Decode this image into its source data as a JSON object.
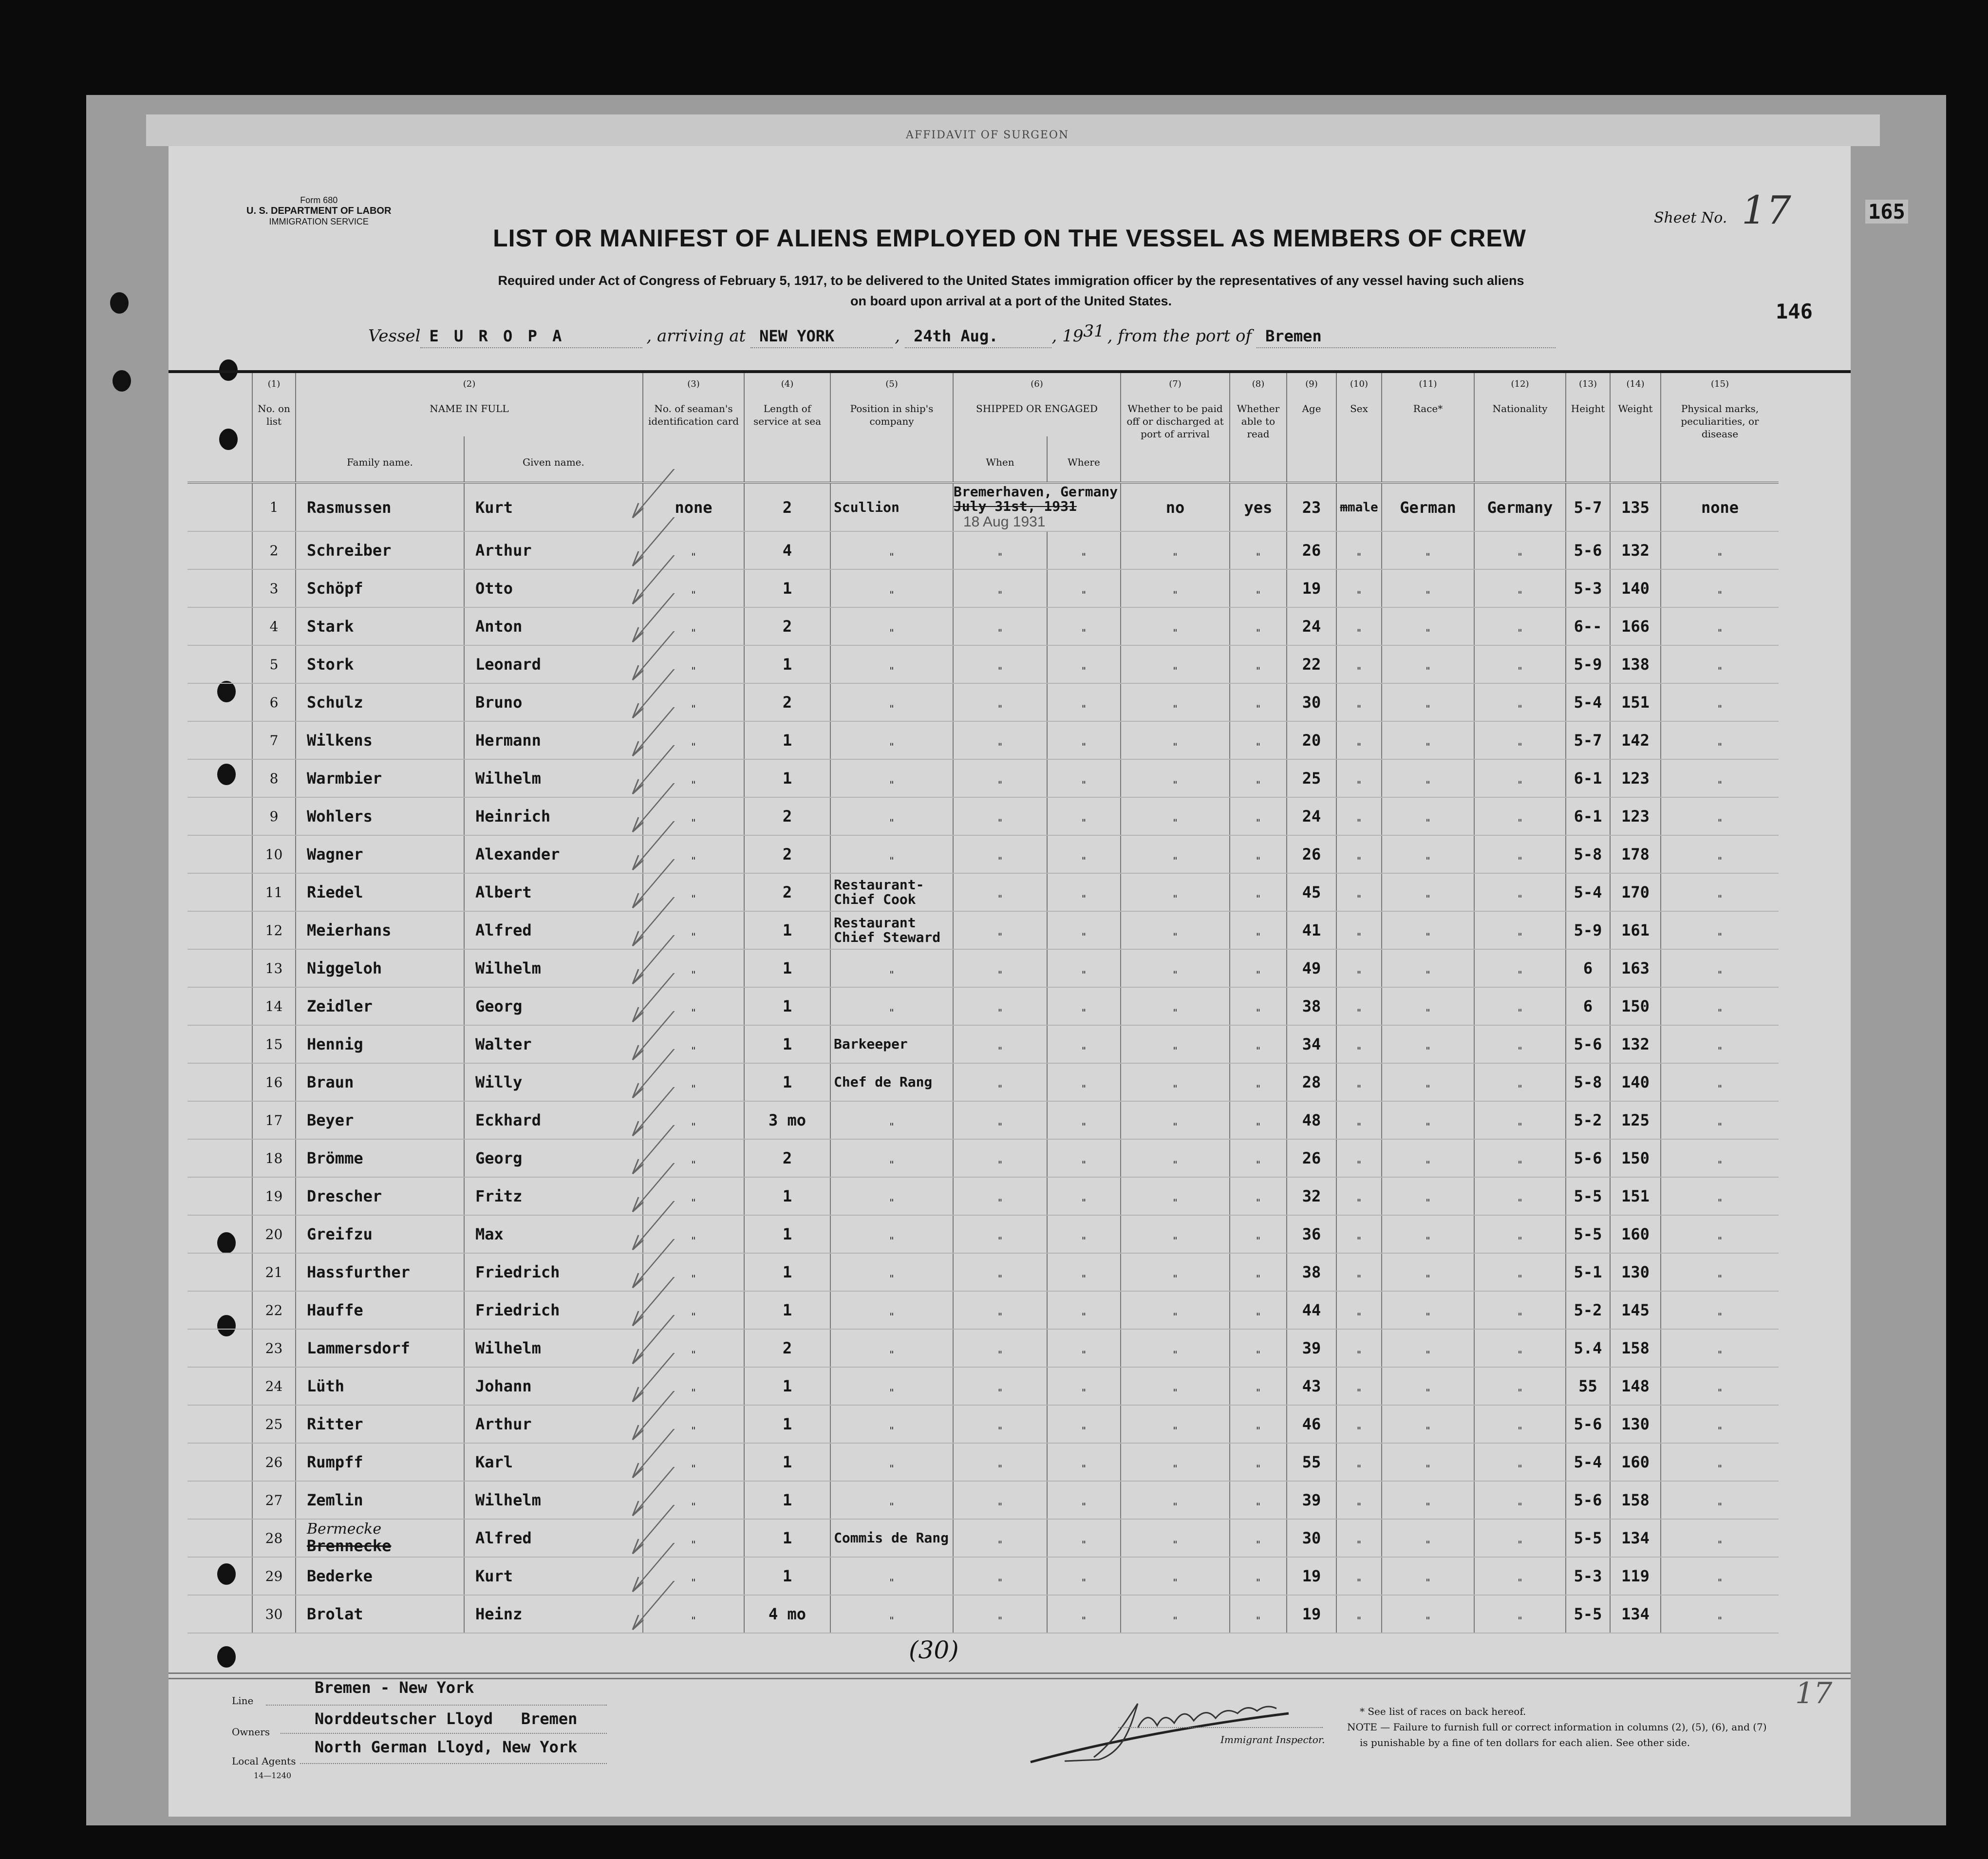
{
  "back_sheet_heading": "AFFIDAVIT OF SURGEON",
  "form": {
    "number": "Form 680",
    "department": "U. S. DEPARTMENT OF LABOR",
    "service": "IMMIGRATION SERVICE",
    "title": "LIST OR MANIFEST OF ALIENS EMPLOYED ON THE VESSEL AS MEMBERS OF CREW",
    "subtitle_1": "Required under Act of Congress of February 5, 1917, to be delivered to the United States immigration officer by the representatives of any vessel having such aliens",
    "subtitle_2": "on board upon arrival at a port of the United States.",
    "sheet_label": "Sheet No.",
    "sheet_no": "17",
    "stamp_top": "165",
    "stamp_mid": "146"
  },
  "voyage": {
    "vessel_label": "Vessel",
    "vessel": "E U R O P A",
    "arriving_label": ", arriving at",
    "port": "NEW YORK",
    "date": "24th Aug.",
    "year_prefix": ", 19",
    "year_suffix": "31",
    "from_label": ", from the port of",
    "from_port": "Bremen"
  },
  "columns": {
    "c1": {
      "num": "(1)",
      "label": "No. on list"
    },
    "c2": {
      "num": "(2)",
      "label": "NAME IN FULL",
      "family": "Family name.",
      "given": "Given name."
    },
    "c3": {
      "num": "(3)",
      "label": "No. of seaman's identification card"
    },
    "c4": {
      "num": "(4)",
      "label": "Length of service at sea"
    },
    "c5": {
      "num": "(5)",
      "label": "Position in ship's company"
    },
    "c6": {
      "num": "(6)",
      "label": "SHIPPED OR ENGAGED",
      "when": "When",
      "where": "Where"
    },
    "c7": {
      "num": "(7)",
      "label": "Whether to be paid off or discharged at port of arrival"
    },
    "c8": {
      "num": "(8)",
      "label": "Whether able to read"
    },
    "c9": {
      "num": "(9)",
      "label": "Age"
    },
    "c10": {
      "num": "(10)",
      "label": "Sex"
    },
    "c11": {
      "num": "(11)",
      "label": "Race*"
    },
    "c12": {
      "num": "(12)",
      "label": "Nationality"
    },
    "c13": {
      "num": "(13)",
      "label": "Height"
    },
    "c14": {
      "num": "(14)",
      "label": "Weight"
    },
    "c15": {
      "num": "(15)",
      "label": "Physical marks, peculiarities, or disease"
    }
  },
  "ditto": "\"",
  "first_row": {
    "shipped_place": "Bremerhaven, Germany",
    "shipped_date_struck": "July 31st, 1931",
    "shipped_stamp": "18 Aug 1931",
    "card": "none",
    "paid_off": "no",
    "able_to_read": "yes",
    "sex_struck": "m",
    "sex": "male",
    "race": "German",
    "nationality": "Germany",
    "marks": "none"
  },
  "crew": [
    {
      "no": "1",
      "family": "Rasmussen",
      "given": "Kurt",
      "length": "2",
      "position": "Scullion",
      "age": "23",
      "height": "5-7",
      "weight": "135"
    },
    {
      "no": "2",
      "family": "Schreiber",
      "given": "Arthur",
      "length": "4",
      "position": "\"",
      "age": "26",
      "height": "5-6",
      "weight": "132"
    },
    {
      "no": "3",
      "family": "Schöpf",
      "given": "Otto",
      "length": "1",
      "position": "\"",
      "age": "19",
      "height": "5-3",
      "weight": "140"
    },
    {
      "no": "4",
      "family": "Stark",
      "given": "Anton",
      "length": "2",
      "position": "\"",
      "age": "24",
      "height": "6--",
      "weight": "166"
    },
    {
      "no": "5",
      "family": "Stork",
      "given": "Leonard",
      "length": "1",
      "position": "\"",
      "age": "22",
      "height": "5-9",
      "weight": "138"
    },
    {
      "no": "6",
      "family": "Schulz",
      "given": "Bruno",
      "length": "2",
      "position": "\"",
      "age": "30",
      "height": "5-4",
      "weight": "151"
    },
    {
      "no": "7",
      "family": "Wilkens",
      "given": "Hermann",
      "length": "1",
      "position": "\"",
      "age": "20",
      "height": "5-7",
      "weight": "142"
    },
    {
      "no": "8",
      "family": "Warmbier",
      "given": "Wilhelm",
      "length": "1",
      "position": "\"",
      "age": "25",
      "height": "6-1",
      "weight": "123"
    },
    {
      "no": "9",
      "family": "Wohlers",
      "given": "Heinrich",
      "length": "2",
      "position": "\"",
      "age": "24",
      "height": "6-1",
      "weight": "123"
    },
    {
      "no": "10",
      "family": "Wagner",
      "given": "Alexander",
      "length": "2",
      "position": "\"",
      "age": "26",
      "height": "5-8",
      "weight": "178"
    },
    {
      "no": "11",
      "family": "Riedel",
      "given": "Albert",
      "length": "2",
      "position": "Restaurant-Chief Cook",
      "age": "45",
      "height": "5-4",
      "weight": "170"
    },
    {
      "no": "12",
      "family": "Meierhans",
      "given": "Alfred",
      "length": "1",
      "position": "Restaurant Chief Steward",
      "age": "41",
      "height": "5-9",
      "weight": "161"
    },
    {
      "no": "13",
      "family": "Niggeloh",
      "given": "Wilhelm",
      "length": "1",
      "position": "\"",
      "age": "49",
      "height": "6",
      "weight": "163"
    },
    {
      "no": "14",
      "family": "Zeidler",
      "given": "Georg",
      "length": "1",
      "position": "\"",
      "age": "38",
      "height": "6",
      "weight": "150"
    },
    {
      "no": "15",
      "family": "Hennig",
      "given": "Walter",
      "length": "1",
      "position": "Barkeeper",
      "age": "34",
      "height": "5-6",
      "weight": "132"
    },
    {
      "no": "16",
      "family": "Braun",
      "given": "Willy",
      "length": "1",
      "position": "Chef de Rang",
      "age": "28",
      "height": "5-8",
      "weight": "140"
    },
    {
      "no": "17",
      "family": "Beyer",
      "given": "Eckhard",
      "length": "3 mo",
      "position": "\"",
      "age": "48",
      "height": "5-2",
      "weight": "125"
    },
    {
      "no": "18",
      "family": "Brömme",
      "given": "Georg",
      "length": "2",
      "position": "\"",
      "age": "26",
      "height": "5-6",
      "weight": "150"
    },
    {
      "no": "19",
      "family": "Drescher",
      "given": "Fritz",
      "length": "1",
      "position": "\"",
      "age": "32",
      "height": "5-5",
      "weight": "151"
    },
    {
      "no": "20",
      "family": "Greifzu",
      "given": "Max",
      "length": "1",
      "position": "\"",
      "age": "36",
      "height": "5-5",
      "weight": "160"
    },
    {
      "no": "21",
      "family": "Hassfurther",
      "given": "Friedrich",
      "length": "1",
      "position": "\"",
      "age": "38",
      "height": "5-1",
      "weight": "130"
    },
    {
      "no": "22",
      "family": "Hauffe",
      "given": "Friedrich",
      "length": "1",
      "position": "\"",
      "age": "44",
      "height": "5-2",
      "weight": "145"
    },
    {
      "no": "23",
      "family": "Lammersdorf",
      "given": "Wilhelm",
      "length": "2",
      "position": "\"",
      "age": "39",
      "height": "5.4",
      "weight": "158"
    },
    {
      "no": "24",
      "family": "Lüth",
      "given": "Johann",
      "length": "1",
      "position": "\"",
      "age": "43",
      "height": "55",
      "weight": "148"
    },
    {
      "no": "25",
      "family": "Ritter",
      "given": "Arthur",
      "length": "1",
      "position": "\"",
      "age": "46",
      "height": "5-6",
      "weight": "130"
    },
    {
      "no": "26",
      "family": "Rumpff",
      "given": "Karl",
      "length": "1",
      "position": "\"",
      "age": "55",
      "height": "5-4",
      "weight": "160"
    },
    {
      "no": "27",
      "family": "Zemlin",
      "given": "Wilhelm",
      "length": "1",
      "position": "\"",
      "age": "39",
      "height": "5-6",
      "weight": "158"
    },
    {
      "no": "28",
      "family": "Brennecke",
      "family_correction": "Bermecke",
      "given": "Alfred",
      "length": "1",
      "position": "Commis de Rang",
      "age": "30",
      "height": "5-5",
      "weight": "134"
    },
    {
      "no": "29",
      "family": "Bederke",
      "given": "Kurt",
      "length": "1",
      "position": "\"",
      "age": "19",
      "height": "5-3",
      "weight": "119"
    },
    {
      "no": "30",
      "family": "Brolat",
      "given": "Heinz",
      "length": "4 mo",
      "position": "\"",
      "age": "19",
      "height": "5-5",
      "weight": "134"
    }
  ],
  "total_count": "(30)",
  "footer": {
    "line_label": "Line",
    "line": "Bremen - New York",
    "owners_label": "Owners",
    "owners": "Norddeutscher Lloyd   Bremen",
    "agents_label": "Local Agents",
    "agents": "North German Lloyd, New York",
    "form_code": "14—1240",
    "inspector_label": "Immigrant Inspector.",
    "race_note": "* See list of races on back hereof.",
    "note_1": "NOTE — Failure to furnish full or correct information in columns (2), (5), (6), and (7)",
    "note_2": "is punishable by a fine of ten dollars for each alien.  See other side.",
    "page_mark": "17"
  }
}
